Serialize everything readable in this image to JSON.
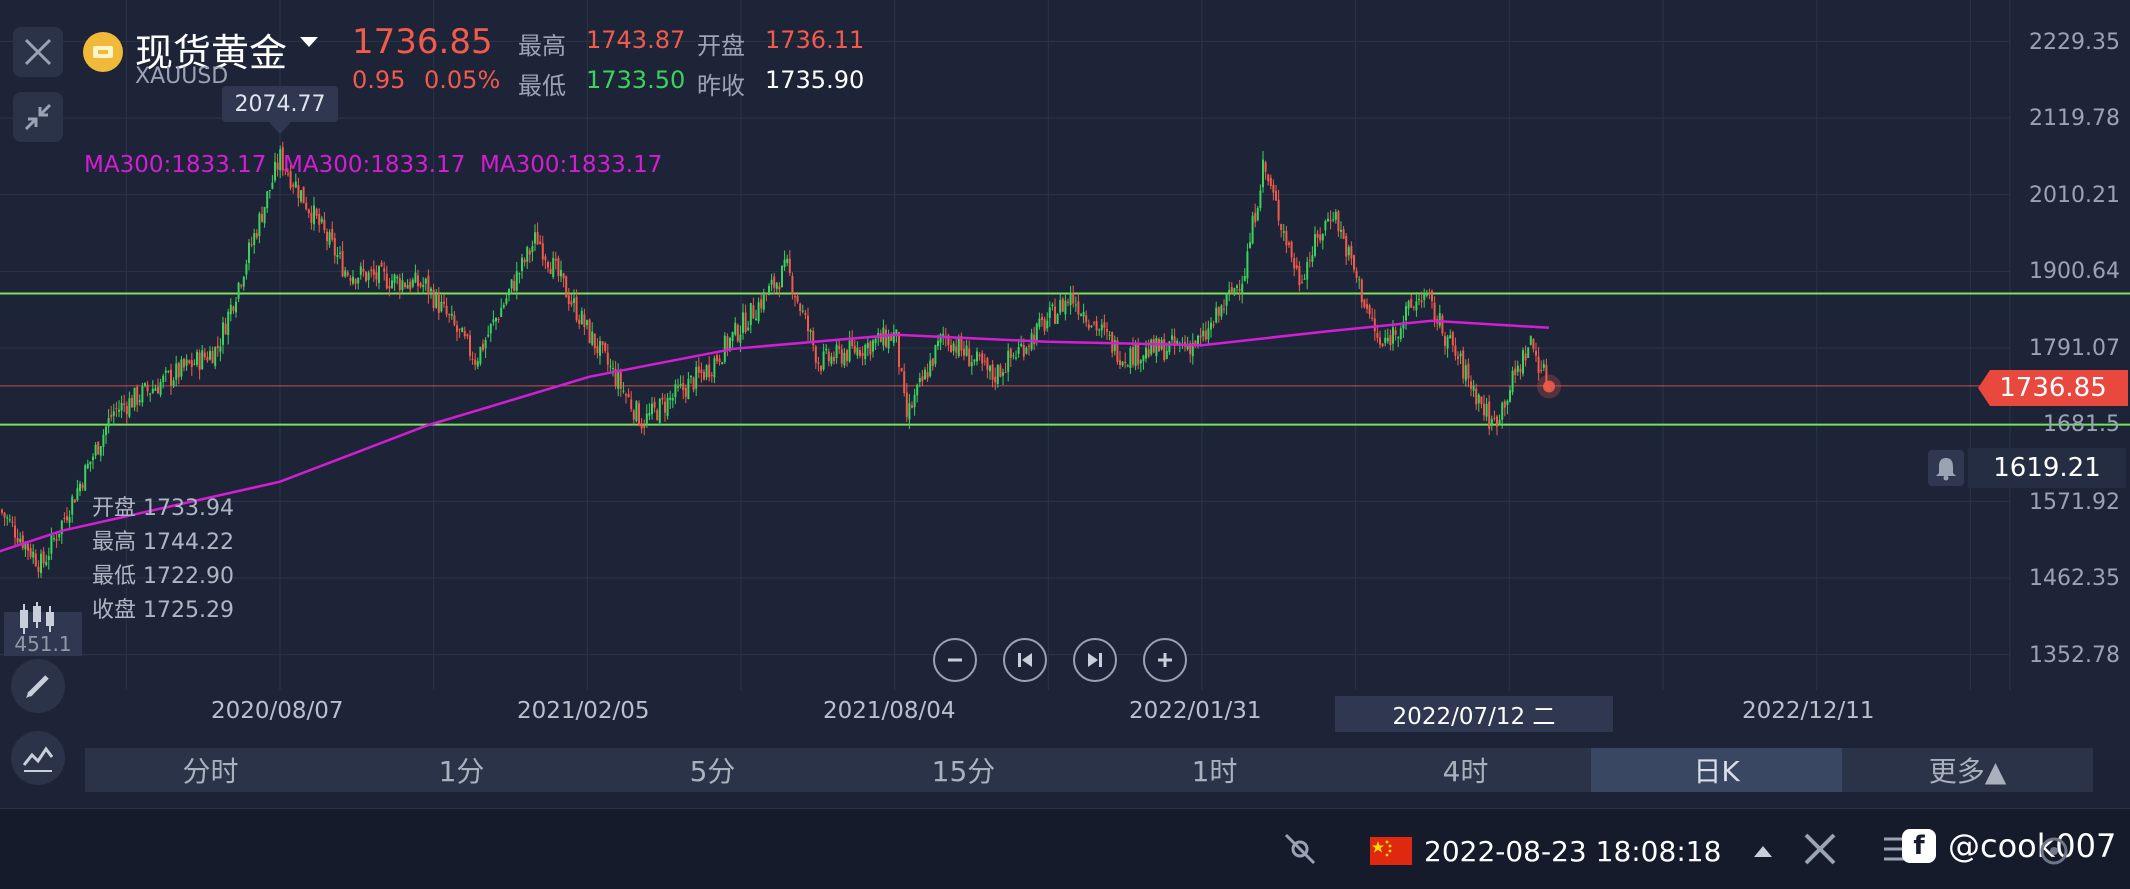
{
  "header": {
    "symbol_name": "现货黄金",
    "symbol_code": "XAUUSD",
    "price": "1736.85",
    "change": "0.95",
    "change_pct": "0.05%",
    "high_label": "最高",
    "high_value": "1743.87",
    "open_label": "开盘",
    "open_value": "1736.11",
    "low_label": "最低",
    "low_value": "1733.50",
    "prev_close_label": "昨收",
    "prev_close_value": "1735.90"
  },
  "ma_labels": [
    "MA300:1833.17",
    "MA300:1833.17",
    "MA300:1833.17"
  ],
  "peak_tooltip": "2074.77",
  "ohlc_box": {
    "open": "开盘 1733.94",
    "high": "最高 1744.22",
    "low": "最低 1722.90",
    "close": "收盘 1725.29"
  },
  "left_edge_value": "451.1",
  "price_tag": "1736.85",
  "alert_price": "1619.21",
  "crosshair_date": "2022/07/12 二",
  "tabs": [
    "分时",
    "1分",
    "5分",
    "15分",
    "1时",
    "4时",
    "日K",
    "更多▲"
  ],
  "active_tab": "日K",
  "status": {
    "datetime": "2022-08-23 18:08:18",
    "watermark": "@cook007"
  },
  "colors": {
    "up": "#3ad35c",
    "down": "#f25b4b",
    "ma": "#d41ed4",
    "support_resistance": "#7ce05a",
    "price_line": "#f25b4b"
  },
  "chart_data": {
    "type": "candlestick",
    "series": [
      {
        "name": "MA300",
        "points": [
          [
            "2020/01/01",
            1457
          ],
          [
            "2020/04/01",
            1530
          ],
          [
            "2020/08/07",
            1600
          ],
          [
            "2020/11/01",
            1680
          ],
          [
            "2021/02/05",
            1750
          ],
          [
            "2021/05/01",
            1790
          ],
          [
            "2021/08/04",
            1810
          ],
          [
            "2021/11/01",
            1800
          ],
          [
            "2022/01/31",
            1795
          ],
          [
            "2022/04/15",
            1815
          ],
          [
            "2022/06/15",
            1830
          ],
          [
            "2022/08/23",
            1820
          ]
        ]
      }
    ],
    "price_path": [
      [
        "2020/01/01",
        1520
      ],
      [
        "2020/02/15",
        1590
      ],
      [
        "2020/03/20",
        1480
      ],
      [
        "2020/05/01",
        1700
      ],
      [
        "2020/07/01",
        1790
      ],
      [
        "2020/08/07",
        2063
      ],
      [
        "2020/09/15",
        1900
      ],
      [
        "2020/11/01",
        1880
      ],
      [
        "2020/11/30",
        1775
      ],
      [
        "2021/01/05",
        1950
      ],
      [
        "2021/02/05",
        1810
      ],
      [
        "2021/03/08",
        1685
      ],
      [
        "2021/04/15",
        1760
      ],
      [
        "2021/06/01",
        1905
      ],
      [
        "2021/06/20",
        1770
      ],
      [
        "2021/08/04",
        1810
      ],
      [
        "2021/08/10",
        1690
      ],
      [
        "2021/09/01",
        1810
      ],
      [
        "2021/09/30",
        1750
      ],
      [
        "2021/11/15",
        1865
      ],
      [
        "2021/12/15",
        1780
      ],
      [
        "2022/01/31",
        1800
      ],
      [
        "2022/02/25",
        1900
      ],
      [
        "2022/03/08",
        2052
      ],
      [
        "2022/03/29",
        1890
      ],
      [
        "2022/04/18",
        1990
      ],
      [
        "2022/05/16",
        1790
      ],
      [
        "2022/06/10",
        1870
      ],
      [
        "2022/07/21",
        1680
      ],
      [
        "2022/08/12",
        1800
      ],
      [
        "2022/08/23",
        1736
      ]
    ],
    "horizontal_lines": [
      1869,
      1736.85,
      1681.5
    ],
    "y_ticks": [
      2229.35,
      2119.78,
      2010.21,
      1900.64,
      1791.07,
      1681.5,
      1571.92,
      1462.35,
      1352.78
    ],
    "x_ticks": [
      "2020/08/07",
      "2021/02/05",
      "2021/08/04",
      "2022/01/31",
      "2022/12/11"
    ],
    "ylim": [
      1300,
      2260
    ],
    "grid": true
  }
}
